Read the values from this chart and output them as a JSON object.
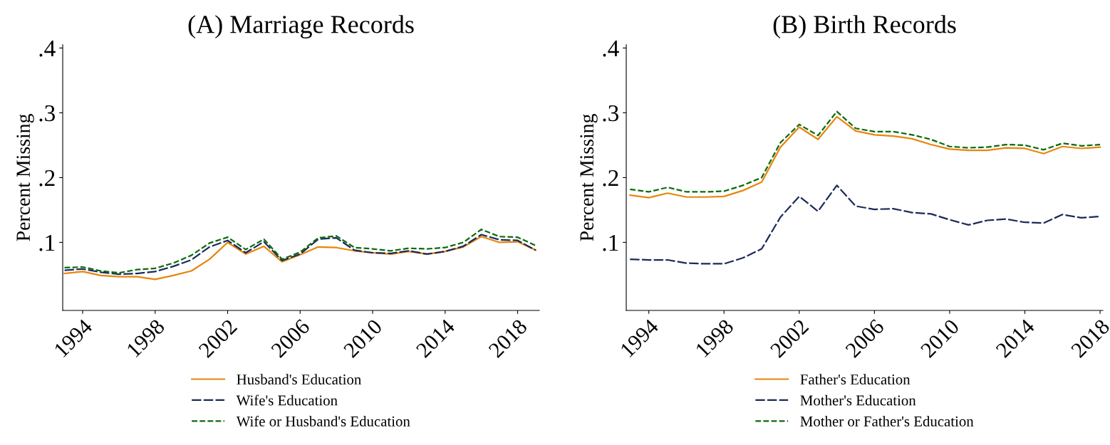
{
  "chart_data": [
    {
      "type": "line",
      "title": "(A) Marriage Records",
      "ylabel": "Percent Missing",
      "x": [
        1993,
        1994,
        1995,
        1996,
        1997,
        1998,
        1999,
        2000,
        2001,
        2002,
        2003,
        2004,
        2005,
        2006,
        2007,
        2008,
        2009,
        2010,
        2011,
        2012,
        2013,
        2014,
        2015,
        2016,
        2017,
        2018,
        2019
      ],
      "xlim": [
        1992.9,
        2019.2
      ],
      "xticks": [
        1994,
        1998,
        2002,
        2006,
        2010,
        2014,
        2018
      ],
      "ylim": [
        -0.005,
        0.405
      ],
      "yticks": [
        {
          "value": 0.1,
          "label": ".1"
        },
        {
          "value": 0.2,
          "label": ".2"
        },
        {
          "value": 0.3,
          "label": ".3"
        },
        {
          "value": 0.4,
          "label": ".4"
        }
      ],
      "grid": false,
      "legend": "bottom",
      "marker": "none",
      "series": [
        {
          "name": "Husband's Education",
          "color": "#e8850c",
          "line_style": "solid",
          "values": [
            0.052,
            0.055,
            0.049,
            0.047,
            0.047,
            0.043,
            0.049,
            0.056,
            0.074,
            0.1,
            0.082,
            0.094,
            0.07,
            0.081,
            0.093,
            0.092,
            0.087,
            0.084,
            0.082,
            0.086,
            0.082,
            0.086,
            0.093,
            0.109,
            0.1,
            0.101,
            0.088
          ]
        },
        {
          "name": "Wife's Education",
          "color": "#1a2a5a",
          "line_style": "longdash",
          "values": [
            0.057,
            0.059,
            0.054,
            0.051,
            0.052,
            0.055,
            0.063,
            0.073,
            0.093,
            0.103,
            0.084,
            0.101,
            0.072,
            0.082,
            0.105,
            0.107,
            0.088,
            0.084,
            0.083,
            0.087,
            0.082,
            0.086,
            0.094,
            0.112,
            0.104,
            0.103,
            0.088
          ]
        },
        {
          "name": "Wife or Husband's Education",
          "color": "#0b6b0b",
          "line_style": "dashed",
          "values": [
            0.061,
            0.062,
            0.056,
            0.053,
            0.058,
            0.06,
            0.068,
            0.08,
            0.099,
            0.108,
            0.089,
            0.105,
            0.074,
            0.085,
            0.107,
            0.11,
            0.092,
            0.09,
            0.087,
            0.091,
            0.09,
            0.092,
            0.1,
            0.12,
            0.109,
            0.108,
            0.095
          ]
        }
      ]
    },
    {
      "type": "line",
      "title": "(B) Birth Records",
      "ylabel": "Percent Missing",
      "x": [
        1993,
        1994,
        1995,
        1996,
        1997,
        1998,
        1999,
        2000,
        2001,
        2002,
        2003,
        2004,
        2005,
        2006,
        2007,
        2008,
        2009,
        2010,
        2011,
        2012,
        2013,
        2014,
        2015,
        2016,
        2017,
        2018
      ],
      "xlim": [
        1992.8,
        2018.15
      ],
      "xticks": [
        1994,
        1998,
        2002,
        2006,
        2010,
        2014,
        2018
      ],
      "ylim": [
        -0.005,
        0.405
      ],
      "yticks": [
        {
          "value": 0.1,
          "label": ".1"
        },
        {
          "value": 0.2,
          "label": ".2"
        },
        {
          "value": 0.3,
          "label": ".3"
        },
        {
          "value": 0.4,
          "label": ".4"
        }
      ],
      "grid": false,
      "legend": "bottom",
      "marker": "none",
      "series": [
        {
          "name": "Father's Education",
          "color": "#e8850c",
          "line_style": "solid",
          "values": [
            0.173,
            0.169,
            0.176,
            0.17,
            0.17,
            0.171,
            0.18,
            0.193,
            0.247,
            0.278,
            0.259,
            0.294,
            0.272,
            0.266,
            0.264,
            0.26,
            0.251,
            0.244,
            0.242,
            0.242,
            0.246,
            0.245,
            0.237,
            0.248,
            0.245,
            0.247
          ]
        },
        {
          "name": "Mother's Education",
          "color": "#1a2a5a",
          "line_style": "longdash",
          "values": [
            0.074,
            0.073,
            0.073,
            0.068,
            0.067,
            0.067,
            0.076,
            0.09,
            0.139,
            0.171,
            0.148,
            0.188,
            0.156,
            0.151,
            0.152,
            0.146,
            0.144,
            0.135,
            0.127,
            0.134,
            0.136,
            0.131,
            0.13,
            0.143,
            0.138,
            0.14
          ]
        },
        {
          "name": "Mother or Father's Education",
          "color": "#0b6b0b",
          "line_style": "dashed",
          "values": [
            0.182,
            0.178,
            0.185,
            0.178,
            0.178,
            0.179,
            0.188,
            0.2,
            0.254,
            0.282,
            0.265,
            0.302,
            0.276,
            0.271,
            0.271,
            0.266,
            0.259,
            0.248,
            0.246,
            0.247,
            0.251,
            0.25,
            0.243,
            0.253,
            0.249,
            0.251
          ]
        }
      ]
    }
  ]
}
